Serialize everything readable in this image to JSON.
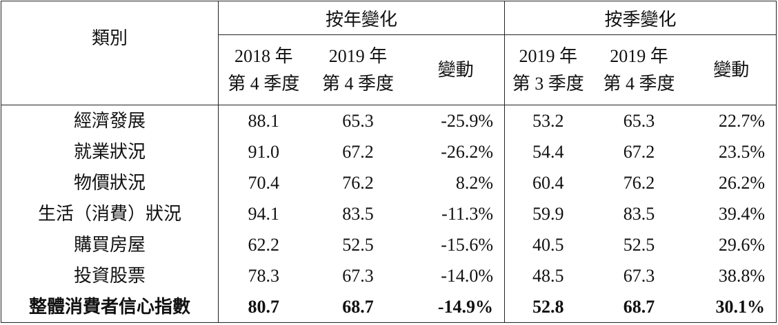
{
  "header": {
    "category": "類別",
    "group_yoy": "按年變化",
    "group_qoq": "按季變化",
    "columns": [
      "2018 年\n第 4 季度",
      "2019 年\n第 4 季度",
      "變動",
      "2019 年\n第 3 季度",
      "2019 年\n第 4 季度",
      "變動"
    ],
    "col_lines": [
      [
        "2018 年",
        "第 4 季度"
      ],
      [
        "2019 年",
        "第 4 季度"
      ],
      [
        "變動"
      ],
      [
        "2019 年",
        "第 3 季度"
      ],
      [
        "2019 年",
        "第 4 季度"
      ],
      [
        "變動"
      ]
    ]
  },
  "rows": [
    {
      "label": "經濟發展",
      "values": [
        "88.1",
        "65.3",
        "-25.9%",
        "53.2",
        "65.3",
        "22.7%"
      ]
    },
    {
      "label": "就業狀況",
      "values": [
        "91.0",
        "67.2",
        "-26.2%",
        "54.4",
        "67.2",
        "23.5%"
      ]
    },
    {
      "label": "物價狀況",
      "values": [
        "70.4",
        "76.2",
        "8.2%",
        "60.4",
        "76.2",
        "26.2%"
      ]
    },
    {
      "label": "生活（消費）狀況",
      "values": [
        "94.1",
        "83.5",
        "-11.3%",
        "59.9",
        "83.5",
        "39.4%"
      ]
    },
    {
      "label": "購買房屋",
      "values": [
        "62.2",
        "52.5",
        "-15.6%",
        "40.5",
        "52.5",
        "29.6%"
      ]
    },
    {
      "label": "投資股票",
      "values": [
        "78.3",
        "67.3",
        "-14.0%",
        "48.5",
        "67.3",
        "38.8%"
      ]
    },
    {
      "label": "整體消費者信心指數",
      "values": [
        "80.7",
        "68.7",
        "-14.9%",
        "52.8",
        "68.7",
        "30.1%"
      ],
      "bold": true
    }
  ]
}
